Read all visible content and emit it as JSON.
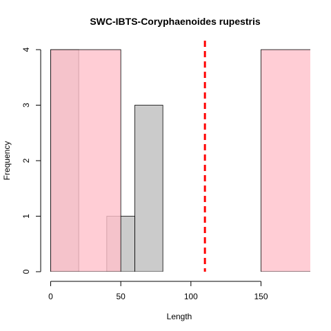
{
  "chart_data": {
    "type": "histogram",
    "title": "SWC-IBTS-Coryphaenoides rupestris",
    "xlabel": "Length",
    "ylabel": "Frequency",
    "xlim": [
      0,
      185
    ],
    "ylim": [
      0,
      4
    ],
    "x_ticks": [
      0,
      50,
      100,
      150
    ],
    "y_ticks": [
      0,
      1,
      2,
      3,
      4
    ],
    "grid": false,
    "series": [
      {
        "fill": "#bebebe",
        "opacity": 0.8,
        "bins": [
          {
            "x0": 0,
            "x1": 20,
            "count": 4
          },
          {
            "x0": 20,
            "x1": 40,
            "count": 0
          },
          {
            "x0": 40,
            "x1": 60,
            "count": 1
          },
          {
            "x0": 60,
            "x1": 80,
            "count": 3
          }
        ]
      },
      {
        "fill": "#ffc0cb",
        "opacity": 0.8,
        "bins": [
          {
            "x0": 0,
            "x1": 50,
            "count": 4
          },
          {
            "x0": 50,
            "x1": 100,
            "count": 0
          },
          {
            "x0": 100,
            "x1": 150,
            "count": 0
          },
          {
            "x0": 150,
            "x1": 200,
            "count": 4
          }
        ]
      }
    ],
    "reference_line": {
      "x": 110,
      "color": "#ff0000",
      "style": "dashed"
    }
  }
}
